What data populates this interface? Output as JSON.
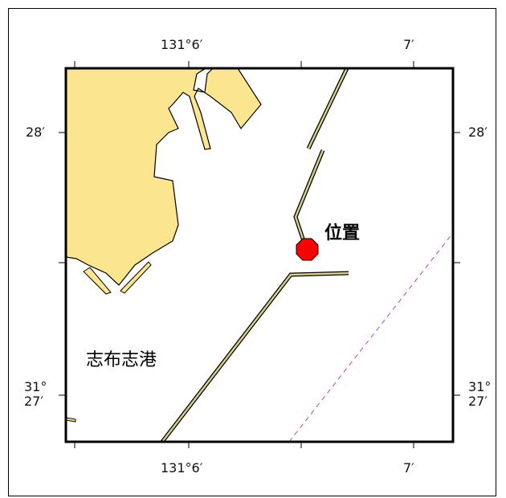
{
  "map": {
    "top_labels": {
      "lon_a": "131°6′",
      "lon_b": "7′"
    },
    "bottom_labels": {
      "lon_a": "131°6′",
      "lon_b": "7′"
    },
    "left_labels": {
      "lat_a": "28′",
      "lat_b": "31°\n27′"
    },
    "right_labels": {
      "lat_a": "28′",
      "lat_b": "31°\n27′"
    },
    "port_name": "志布志港",
    "marker_label": "位置",
    "colors": {
      "land": "#fbe58e",
      "land_outline": "#000000",
      "breakwater": "#d8cf86",
      "marker": "#ff0000",
      "boundary_line": "#c040c0"
    }
  }
}
